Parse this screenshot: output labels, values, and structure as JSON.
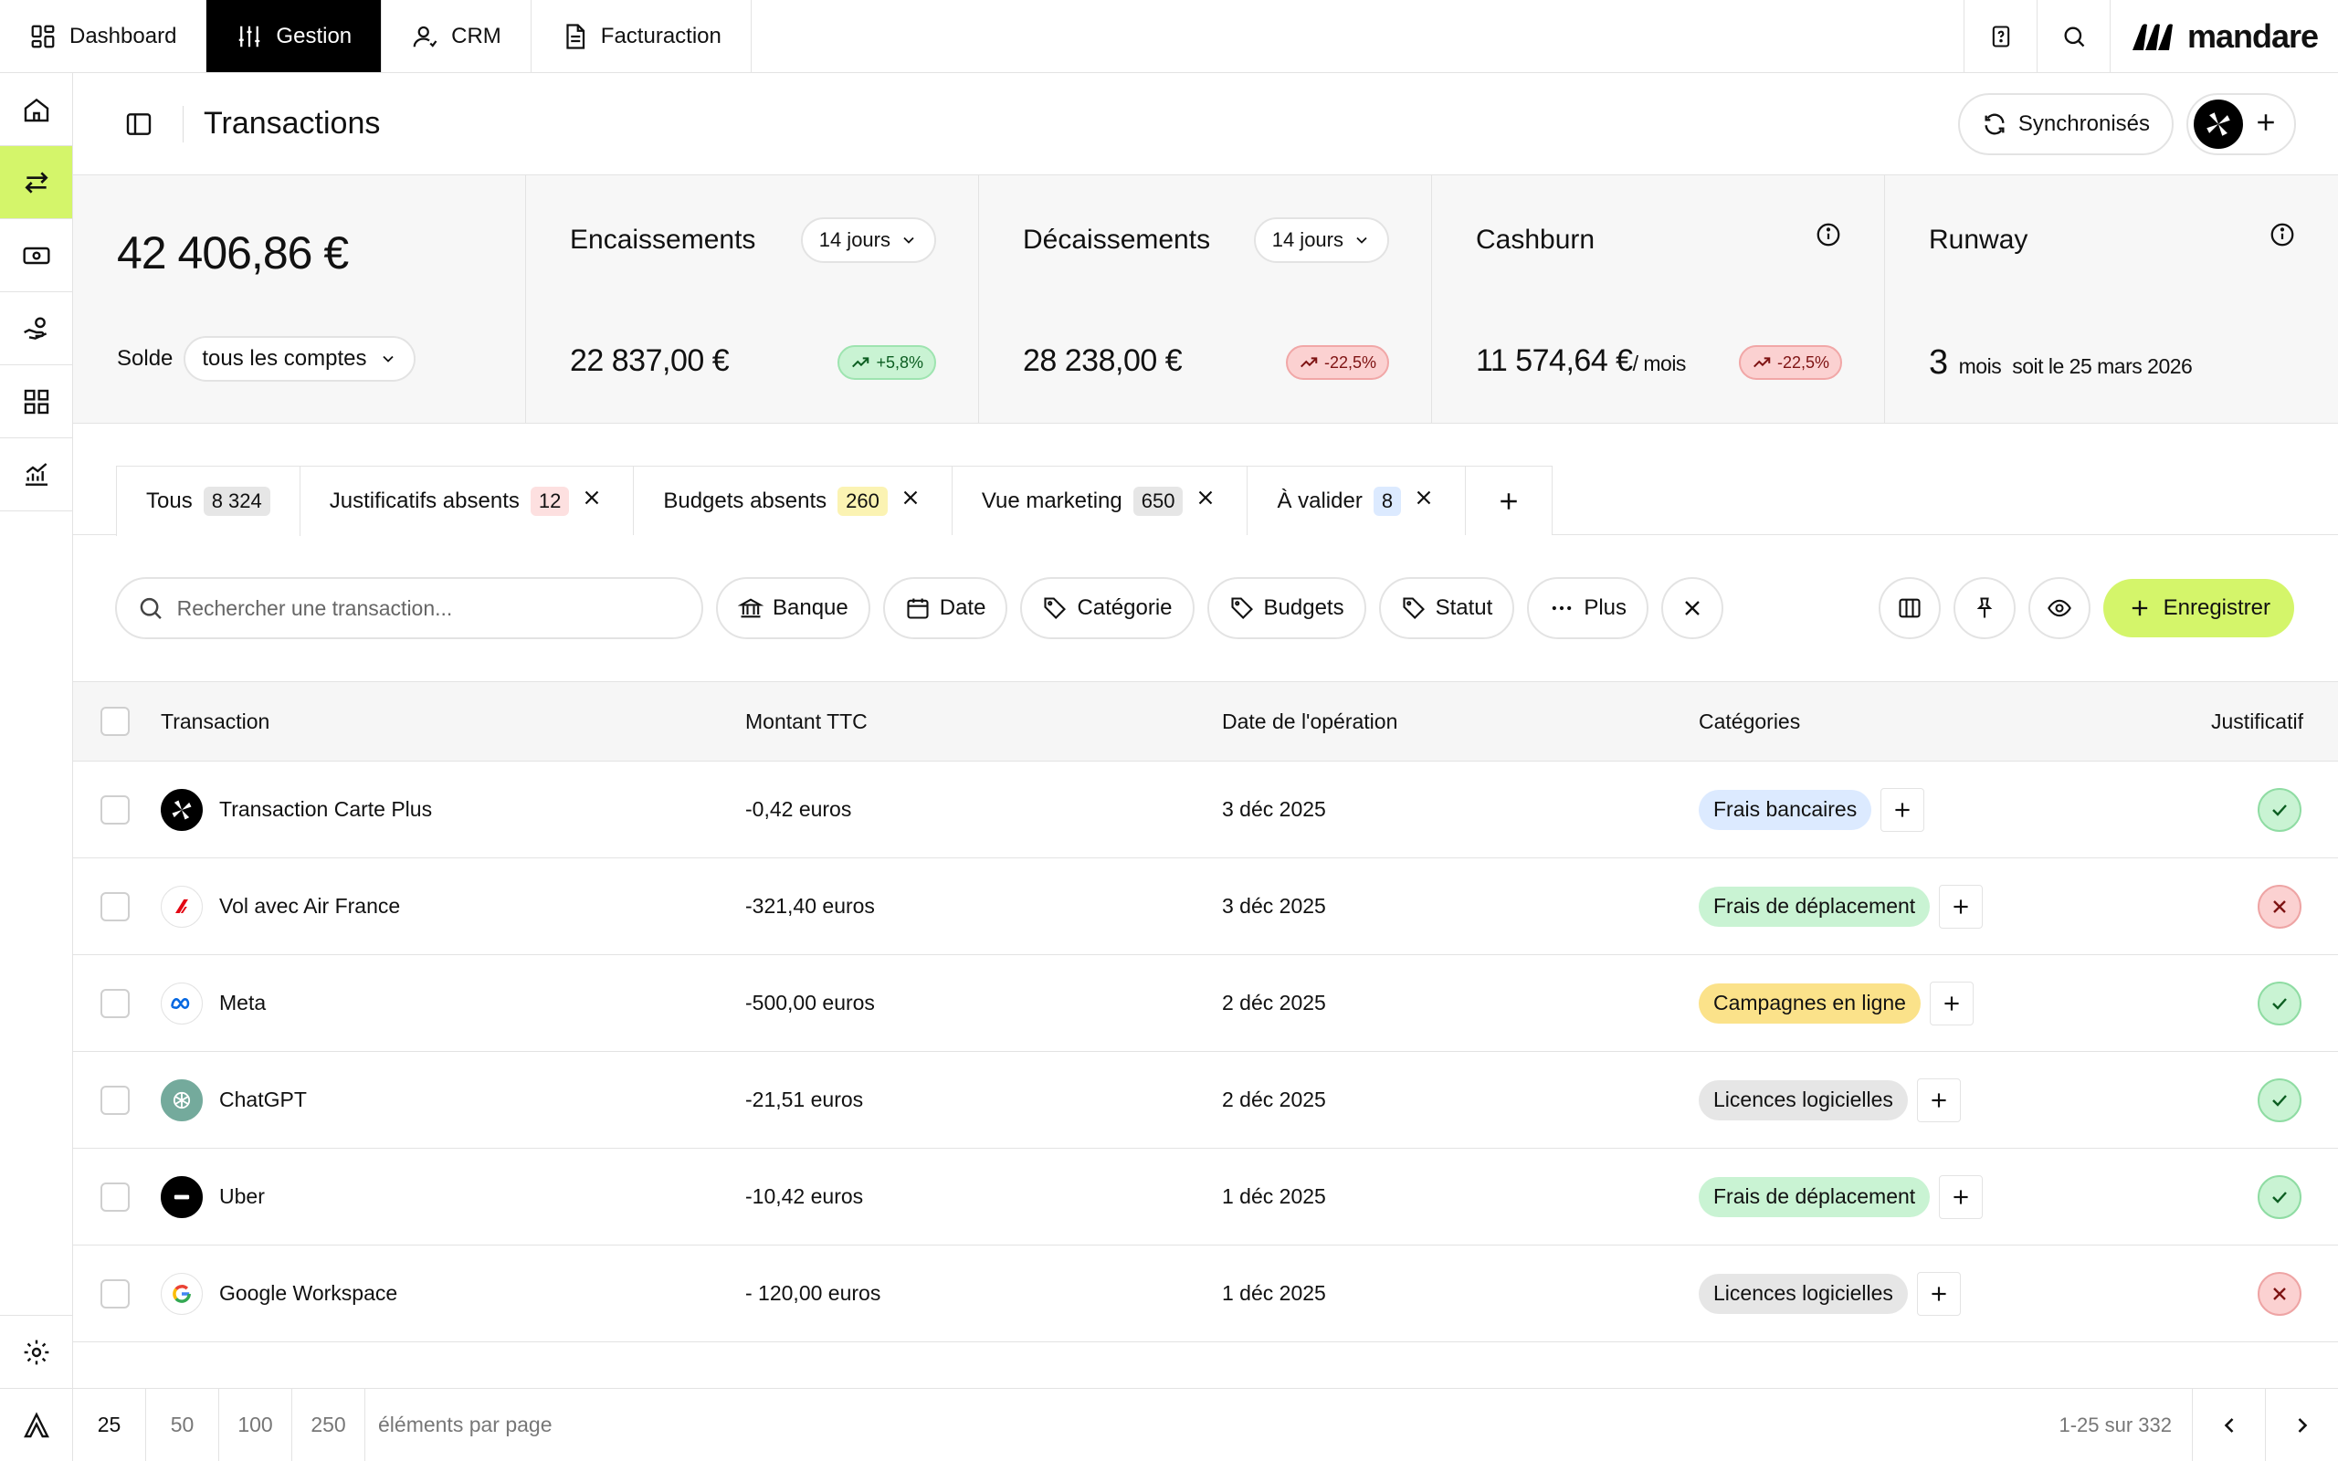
{
  "topnav": {
    "tabs": [
      {
        "label": "Dashboard",
        "icon": "grid-icon"
      },
      {
        "label": "Gestion",
        "icon": "sliders-icon"
      },
      {
        "label": "CRM",
        "icon": "user-icon"
      },
      {
        "label": "Facturaction",
        "icon": "document-icon"
      }
    ],
    "brand": "mandare"
  },
  "sidebar": {
    "items": [
      "home-icon",
      "transfer-icon",
      "cash-icon",
      "hand-coin-icon",
      "apps-icon",
      "chart-icon"
    ],
    "bottom": [
      "settings-icon",
      "logo-icon"
    ]
  },
  "header": {
    "title": "Transactions",
    "sync_label": "Synchronisés"
  },
  "kpis": {
    "balance": {
      "value": "42 406,86 €",
      "label": "Solde",
      "account_select": "tous les comptes"
    },
    "inflow": {
      "label": "Encaissements",
      "period": "14 jours",
      "value": "22 837,00 €",
      "trend": "+5,8%"
    },
    "outflow": {
      "label": "Décaissements",
      "period": "14 jours",
      "value": "28 238,00 €",
      "trend": "-22,5%"
    },
    "cashburn": {
      "label": "Cashburn",
      "value": "11 574,64 €",
      "unit": "/ mois",
      "trend": "-22,5%"
    },
    "runway": {
      "label": "Runway",
      "value": "3",
      "unit": "mois",
      "detail": "soit le 25 mars 2026"
    }
  },
  "views": [
    {
      "label": "Tous",
      "count": "8 324"
    },
    {
      "label": "Justificatifs absents",
      "count": "12"
    },
    {
      "label": "Budgets absents",
      "count": "260"
    },
    {
      "label": "Vue marketing",
      "count": "650"
    },
    {
      "label": "À valider",
      "count": "8"
    }
  ],
  "filters": {
    "search_placeholder": "Rechercher une transaction...",
    "bank": "Banque",
    "date": "Date",
    "category": "Catégorie",
    "budgets": "Budgets",
    "status": "Statut",
    "more": "Plus",
    "save": "Enregistrer"
  },
  "table": {
    "headers": {
      "transaction": "Transaction",
      "amount": "Montant TTC",
      "date": "Date de l'opération",
      "categories": "Catégories",
      "receipt": "Justificatif"
    },
    "rows": [
      {
        "name": "Transaction Carte Plus",
        "amount": "-0,42 euros",
        "date": "3 déc 2025",
        "category": "Frais bancaires",
        "receipt": "ok"
      },
      {
        "name": "Vol avec Air France",
        "amount": "-321,40 euros",
        "date": "3 déc 2025",
        "category": "Frais de déplacement",
        "receipt": "missing"
      },
      {
        "name": "Meta",
        "amount": "-500,00 euros",
        "date": "2 déc 2025",
        "category": "Campagnes en ligne",
        "receipt": "ok"
      },
      {
        "name": "ChatGPT",
        "amount": "-21,51 euros",
        "date": "2 déc 2025",
        "category": "Licences logicielles",
        "receipt": "ok"
      },
      {
        "name": "Uber",
        "amount": "-10,42 euros",
        "date": "1 déc 2025",
        "category": "Frais de déplacement",
        "receipt": "ok"
      },
      {
        "name": "Google Workspace",
        "amount": "- 120,00 euros",
        "date": "1 déc 2025",
        "category": "Licences logicielles",
        "receipt": "missing"
      }
    ]
  },
  "pagination": {
    "sizes": [
      "25",
      "50",
      "100",
      "250"
    ],
    "per_page_label": "éléments par page",
    "range": "1-25 sur 332"
  },
  "colors": {
    "accent": "#d4f56a",
    "positive": "#c9f3d3",
    "negative": "#fbd1d1"
  }
}
